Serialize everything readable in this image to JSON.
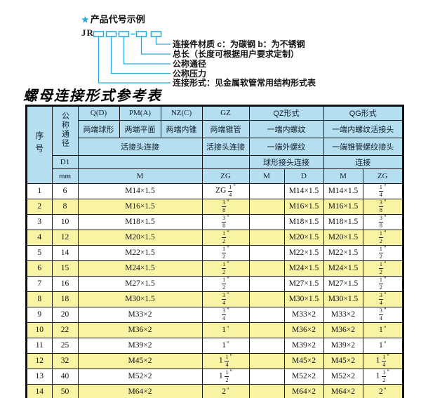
{
  "diagram": {
    "star_icon": "★",
    "title": "产品代号示例",
    "prefix": "JR",
    "dash": "-",
    "labels": [
      "连接件材质  c：为碳钢  b：为不锈钢",
      "总长（长度可根据用户要求定制）",
      "公称通径",
      "公称压力",
      "连接形式：见金属软管常用结构形式表"
    ]
  },
  "table": {
    "title": "螺母连接形式参考表",
    "header": {
      "seq": "序号",
      "nominal_diameter": "公称通径",
      "d1": "D1",
      "mm": "mm",
      "col_q": "Q(D)",
      "col_pm": "PM(A)",
      "col_nz": "NZ(C)",
      "col_gz": "GZ",
      "col_qz": "QZ形式",
      "col_qg": "QG形式",
      "q_sub": "两端球形",
      "pm_sub": "两端平面",
      "nz_sub": "两端内锥",
      "gz_sub": "两端锥管",
      "qz_sub1": "一端内螺纹",
      "qg_sub1": "一端内螺纹活接头",
      "union_conn": "活接头连接",
      "gz_conn": "活接头连接",
      "qz_sub2": "一端外螺纹",
      "qg_sub2": "一端锥管螺纹接头",
      "qz_conn": "球形接头连接",
      "qg_conn": "连接",
      "unit_m": "M",
      "unit_zg": "ZG",
      "qz_m": "M",
      "qz_d": "D",
      "qg_m": "M",
      "qg_zg": "ZG"
    },
    "rows": [
      {
        "seq": "1",
        "mm": "6",
        "m": "M14×1.5",
        "gz": "ZG 1/4\"",
        "qz_m": "",
        "qz_d": "M14×1.5",
        "qg_m": "M14×1.5",
        "qg_zg": "1/4\""
      },
      {
        "seq": "2",
        "mm": "8",
        "m": "M16×1.5",
        "gz": "3/8\"",
        "qz_m": "",
        "qz_d": "M16×1.5",
        "qg_m": "M16×1.5",
        "qg_zg": "3/8\""
      },
      {
        "seq": "3",
        "mm": "10",
        "m": "M18×1.5",
        "gz": "3/8\"",
        "qz_m": "",
        "qz_d": "M18×1.5",
        "qg_m": "M18×1.5",
        "qg_zg": "3/8\""
      },
      {
        "seq": "4",
        "mm": "12",
        "m": "M20×1.5",
        "gz": "1/2\"",
        "qz_m": "",
        "qz_d": "M20×1.5",
        "qg_m": "M20×1.5",
        "qg_zg": "1/2\""
      },
      {
        "seq": "5",
        "mm": "14",
        "m": "M22×1.5",
        "gz": "1/2\"",
        "qz_m": "",
        "qz_d": "M22×1.5",
        "qg_m": "M22×1.5",
        "qg_zg": "1/2\""
      },
      {
        "seq": "6",
        "mm": "15",
        "m": "M24×1.5",
        "gz": "1/2\"",
        "qz_m": "",
        "qz_d": "M24×1.5",
        "qg_m": "M24×1.5",
        "qg_zg": "1/2\""
      },
      {
        "seq": "7",
        "mm": "16",
        "m": "M27×1.5",
        "gz": "1/2\"",
        "qz_m": "",
        "qz_d": "M27×1.5",
        "qg_m": "M27×1.5",
        "qg_zg": "1/2\""
      },
      {
        "seq": "8",
        "mm": "18",
        "m": "M30×1.5",
        "gz": "3/4\"",
        "qz_m": "",
        "qz_d": "M30×1.5",
        "qg_m": "M30×1.5",
        "qg_zg": "3/4\""
      },
      {
        "seq": "9",
        "mm": "20",
        "m": "M33×2",
        "gz": "3/4\"",
        "qz_m": "",
        "qz_d": "M33×2",
        "qg_m": "M33×2",
        "qg_zg": "3/4\""
      },
      {
        "seq": "10",
        "mm": "22",
        "m": "M36×2",
        "gz": "1\"",
        "qz_m": "",
        "qz_d": "M36×2",
        "qg_m": "M36×2",
        "qg_zg": "1\""
      },
      {
        "seq": "11",
        "mm": "25",
        "m": "M39×2",
        "gz": "1\"",
        "qz_m": "",
        "qz_d": "M39×2",
        "qg_m": "M39×2",
        "qg_zg": "1\""
      },
      {
        "seq": "12",
        "mm": "32",
        "m": "M45×2",
        "gz": "1 1/4\"",
        "qz_m": "",
        "qz_d": "M45×2",
        "qg_m": "M45×2",
        "qg_zg": "1 1/4\""
      },
      {
        "seq": "13",
        "mm": "40",
        "m": "M52×2",
        "gz": "1 1/2\"",
        "qz_m": "",
        "qz_d": "M52×2",
        "qg_m": "M52×2",
        "qg_zg": "1 1/2\""
      },
      {
        "seq": "14",
        "mm": "50",
        "m": "M64×2",
        "gz": "2\"",
        "qz_m": "",
        "qz_d": "M64×2",
        "qg_m": "M64×2",
        "qg_zg": "2\""
      }
    ]
  },
  "colors": {
    "accent_cyan": "#29aadf",
    "header_blue": "#b5def1",
    "row_yellow": "#f9f4a3",
    "border": "#1a1a1a"
  }
}
